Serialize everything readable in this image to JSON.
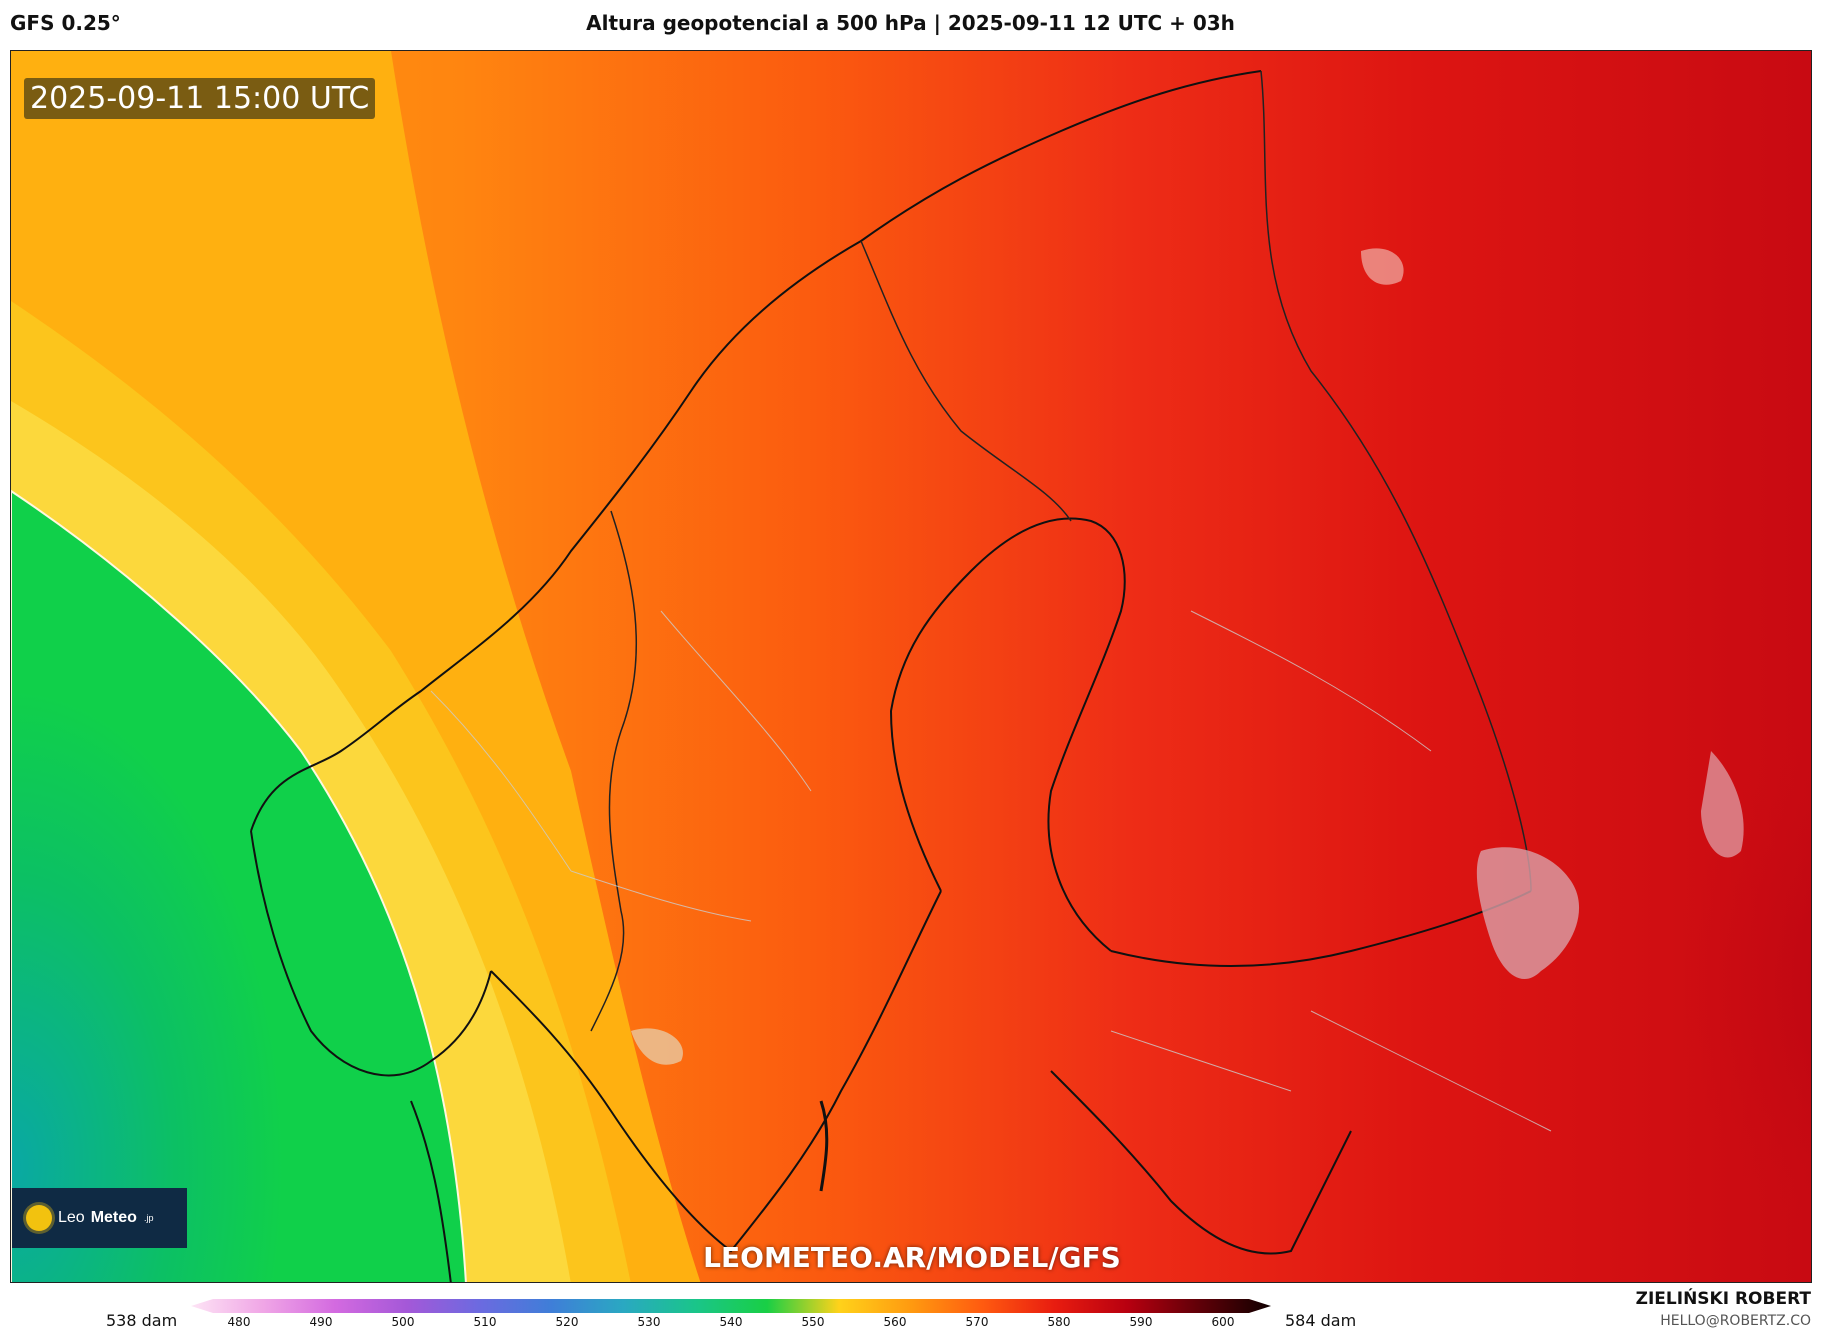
{
  "header": {
    "model": "GFS 0.25°",
    "title": "Altura geopotencial a 500 hPa | 2025-09-11 12 UTC + 03h"
  },
  "map": {
    "valid_time": "2025-09-11 15:00 UTC",
    "watermark": "LEOMETEO.AR/MODEL/GFS",
    "logo": {
      "text_light": "Leo",
      "text_bold": "Meteo",
      "suffix": ".jp"
    },
    "region": "Scandinavia / Baltic",
    "colors": {
      "green": "#0fd04a",
      "teal": "#0aa5a0",
      "yellow": "#fbd43a",
      "orange": "#fb8a10",
      "red": "#e8201a",
      "darkred": "#c00010"
    }
  },
  "colorbar": {
    "min_label": "538 dam",
    "max_label": "584 dam",
    "ticks": [
      "480",
      "490",
      "500",
      "510",
      "520",
      "530",
      "540",
      "550",
      "560",
      "570",
      "580",
      "590",
      "600"
    ],
    "stops": [
      "#fde4f5",
      "#f0a6e6",
      "#d36ae0",
      "#a458d8",
      "#6c6ae0",
      "#3f7ed8",
      "#2aa8c2",
      "#1ac58a",
      "#19cf45",
      "#ffd21a",
      "#ff9a10",
      "#ff5a10",
      "#e81c10",
      "#b80010",
      "#600008",
      "#100000"
    ]
  },
  "author": {
    "name": "ZIELIŃSKI ROBERT",
    "email": "HELLO@ROBERTZ.CO"
  }
}
